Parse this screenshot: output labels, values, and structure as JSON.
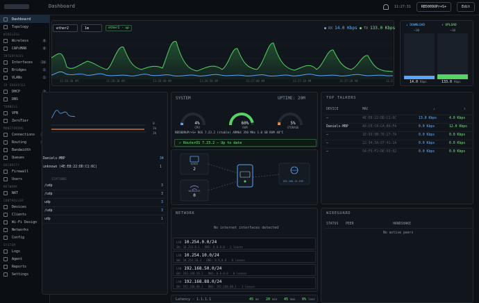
{
  "topbar": {
    "breadcrumb": "Dashboard",
    "time": "11:27:31",
    "device": "RB5009UPr+S+",
    "edit_label": "Edit"
  },
  "sidebar": {
    "items": [
      {
        "label": "Dashboard"
      },
      {
        "label": "Topology"
      },
      {
        "section": "WIRELESS"
      },
      {
        "label": "Wireless",
        "count": "0"
      },
      {
        "label": "CAPsMAN",
        "count": "0"
      },
      {
        "section": "INTERFACES"
      },
      {
        "label": "Interfaces",
        "count": "34"
      },
      {
        "label": "Bridges",
        "count": "1"
      },
      {
        "label": "VLANs",
        "count": "1"
      },
      {
        "section": "IP SERVICES"
      },
      {
        "label": "DHCP",
        "count": "3"
      },
      {
        "label": "DNS",
        "count": "1"
      },
      {
        "section": "TUNNELS"
      },
      {
        "label": "VPN",
        "count": "0"
      },
      {
        "label": "ZeroTier",
        "count": "0"
      },
      {
        "section": "MONITORING"
      },
      {
        "label": "Connections",
        "count": "34"
      },
      {
        "label": "Routing",
        "count": "13"
      },
      {
        "label": "Bandwidth"
      },
      {
        "label": "Queues",
        "count": "0"
      },
      {
        "section": "SECURITY"
      },
      {
        "label": "Firewall",
        "count": "1"
      },
      {
        "label": "Users",
        "count": "1"
      },
      {
        "section": "NETWORK"
      },
      {
        "label": "NAT",
        "count": "1"
      },
      {
        "section": "CONTROLLER"
      },
      {
        "label": "Devices"
      },
      {
        "label": "Clients"
      },
      {
        "label": "Wi-Fi Design"
      },
      {
        "label": "Networks"
      },
      {
        "label": "Config"
      },
      {
        "section": "SYSTEM"
      },
      {
        "label": "Logs"
      },
      {
        "label": "Agent"
      },
      {
        "label": "Reports"
      },
      {
        "label": "Settings"
      }
    ]
  },
  "traffic": {
    "select_iface": "ether2",
    "select_range": "1m",
    "iface_tag": "ether1 · up",
    "rx_label": "RX",
    "rx_value": "14.0 Kbps",
    "tx_label": "TX",
    "tx_value": "133.0 Kbps",
    "times": [
      "11:26:30 AM",
      "11:26:30 AM",
      "11:26:40 AM",
      "11:26:50 AM",
      "11:27:00 AM",
      "11:27:10 AM",
      "11:27:20 AM",
      "11:27:30 AM"
    ]
  },
  "bandwidth": {
    "download_label": "↓ DOWNLOAD",
    "download_sub": "~10",
    "upload_label": "↑ UPLOAD",
    "upload_sub": "~10",
    "download_value": "14.0",
    "download_unit": "Kbps",
    "upload_value": "133.0",
    "upload_unit": "Kbps",
    "download_level": 0.08,
    "upload_level": 0.1
  },
  "system": {
    "title": "SYSTEM",
    "uptime": "UPTIME: 20M",
    "cpu_label": "CPU",
    "cpu_value": "4%",
    "cpu_level": 0.04,
    "ram_label": "RAM",
    "ram_value": "60%",
    "ram_level": 0.6,
    "storage_label": "STORAGE",
    "storage_value": "5%",
    "storage_level": 0.05,
    "info": "RB5009UPr+S+   ROS 7.23.2 (stable)   ARM64   350 MHz   1.0 GB RAM   48°C",
    "status": "✓ RouterOS 7.23.2 — Up to date"
  },
  "clients_panel": {
    "rows": [
      {
        "label": "Daniels-MBP",
        "count": "34"
      },
      {
        "label": "unknown (4E:E8:22:DD:C1:6C)",
        "count": "1"
      }
    ],
    "ports_label": "STATIONS",
    "ports": [
      {
        "label": "/udp",
        "count": "3"
      },
      {
        "label": "/udp",
        "count": "3"
      },
      {
        "label": "udp",
        "count": "3"
      },
      {
        "label": "/udp",
        "count": "3"
      },
      {
        "label": "udp",
        "count": "1"
      }
    ],
    "spark_levels": [
      "0",
      "1k",
      "2k"
    ]
  },
  "topology": {
    "wired_label": "WIRED",
    "wired_count": "2",
    "wireless_label": "WIRELESS",
    "wireless_count": "0",
    "wan_label": "WAN",
    "wan_ip": "192.168.12.195"
  },
  "network": {
    "title": "NETWORK",
    "empty_msg": "No internet interfaces detected",
    "lans": [
      {
        "prefix": "LAN",
        "cidr": "10.254.0.0/24",
        "sub": "GW: 10.254.0.1  ·  DNS: 8.8.8.8  ·  2 leases"
      },
      {
        "prefix": "LAN",
        "cidr": "10.254.10.0/24",
        "sub": "GW: 10.254.10.1  ·  DNS: 8.8.8.8  ·  0 leases"
      },
      {
        "prefix": "LAN",
        "cidr": "192.168.50.0/24",
        "sub": "GW: 192.168.50.1  ·  DNS: 8.8.8.8  ·  0 leases"
      },
      {
        "prefix": "LAN",
        "cidr": "192.168.88.0/24",
        "sub": "GW: 192.168.88.1  ·  DNS: 192.168.88.1  ·  1 leases"
      }
    ]
  },
  "latency": {
    "label": "Latency · 1.1.1.1",
    "min": "45",
    "min_unit": "ms",
    "avg": "20",
    "avg_unit": "min",
    "max": "45",
    "max_unit": "max",
    "loss": "0%",
    "loss_unit": "loss"
  },
  "top_talkers": {
    "title": "TOP TALKERS",
    "headers": {
      "device": "DEVICE",
      "mac": "MAC",
      "down": "↓",
      "up": "↑"
    },
    "rows": [
      {
        "device": "—",
        "mac": "4E:E8:22:DD:C1:6C",
        "down": "13.0 Kbps",
        "up": "4.0 Kbps"
      },
      {
        "device": "Daniels-MBP",
        "mac": "A0:CE:C8:CA:89:FA",
        "down": "0.0 Kbps",
        "up": "12.0 Kbps"
      },
      {
        "device": "—",
        "mac": "1E:93:9B:76:27:7A",
        "down": "0.0 Kbps",
        "up": "0.0 Kbps"
      },
      {
        "device": "—",
        "mac": "22:34:5A:07:41:1A",
        "down": "0.0 Kbps",
        "up": "0.0 Kbps"
      },
      {
        "device": "—",
        "mac": "5A:F5:F2:DE:93:02",
        "down": "0.0 Kbps",
        "up": "0.0 Kbps"
      }
    ]
  },
  "wireguard": {
    "title": "WIREGUARD",
    "headers": {
      "status": "STATUS",
      "peer": "PEER",
      "handshake": "HANDSHAKE"
    },
    "empty_msg": "No active peers"
  },
  "colors": {
    "accent_blue": "#6cb6ff",
    "accent_green": "#7ee787",
    "background": "#0e1116"
  }
}
